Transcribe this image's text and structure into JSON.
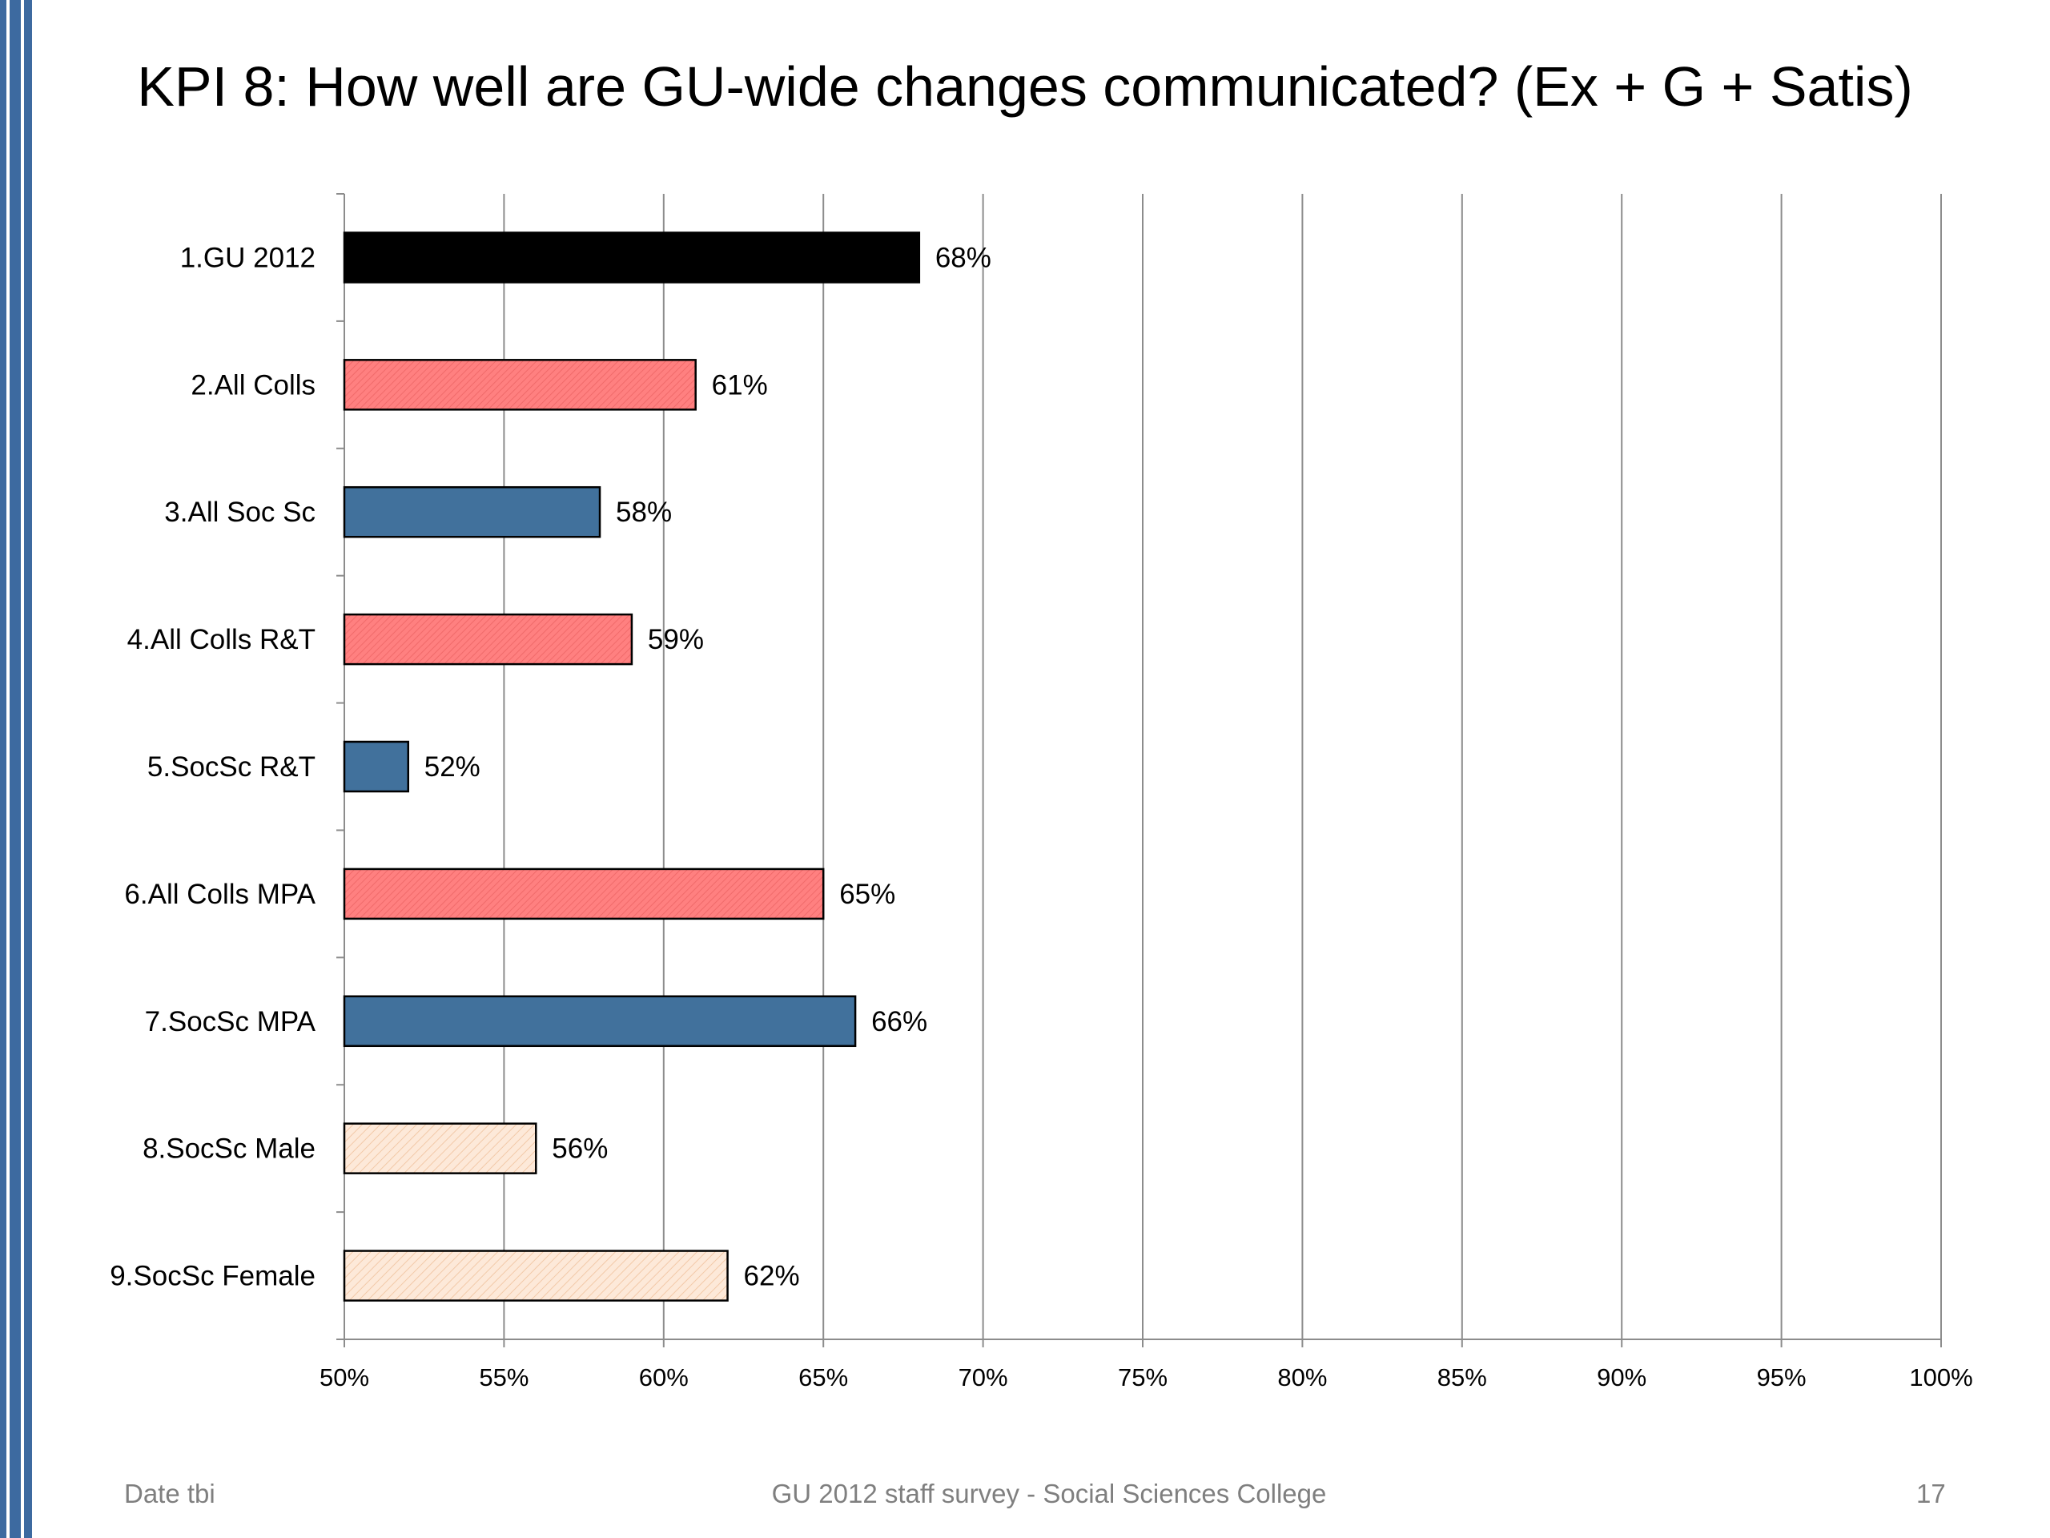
{
  "chart_data": {
    "type": "bar",
    "orientation": "horizontal",
    "title": "KPI 8: How well are GU-wide changes communicated? (Ex + G + Satis)",
    "categories": [
      "1.GU 2012",
      "2.All Colls",
      "3.All Soc Sc",
      "4.All Colls R&T",
      "5.SocSc R&T",
      "6.All Colls MPA",
      "7.SocSc MPA",
      "8.SocSc Male",
      "9.SocSc Female"
    ],
    "values": [
      68,
      61,
      58,
      59,
      52,
      65,
      66,
      56,
      62
    ],
    "value_labels": [
      "68%",
      "61%",
      "58%",
      "59%",
      "52%",
      "65%",
      "66%",
      "56%",
      "62%"
    ],
    "bar_colors": [
      "#000000",
      "#ff8080",
      "#41719c",
      "#ff8080",
      "#41719c",
      "#ff8080",
      "#41719c",
      "#fce4d0",
      "#fce4d0"
    ],
    "xlim": [
      50,
      100
    ],
    "x_ticks": [
      "50%",
      "55%",
      "60%",
      "65%",
      "70%",
      "75%",
      "80%",
      "85%",
      "90%",
      "95%",
      "100%"
    ],
    "grid": "vertical",
    "legend": "none"
  },
  "footer": {
    "date": "Date tbi",
    "center": "GU 2012 staff survey -  Social Sciences College",
    "page_number": "17"
  }
}
